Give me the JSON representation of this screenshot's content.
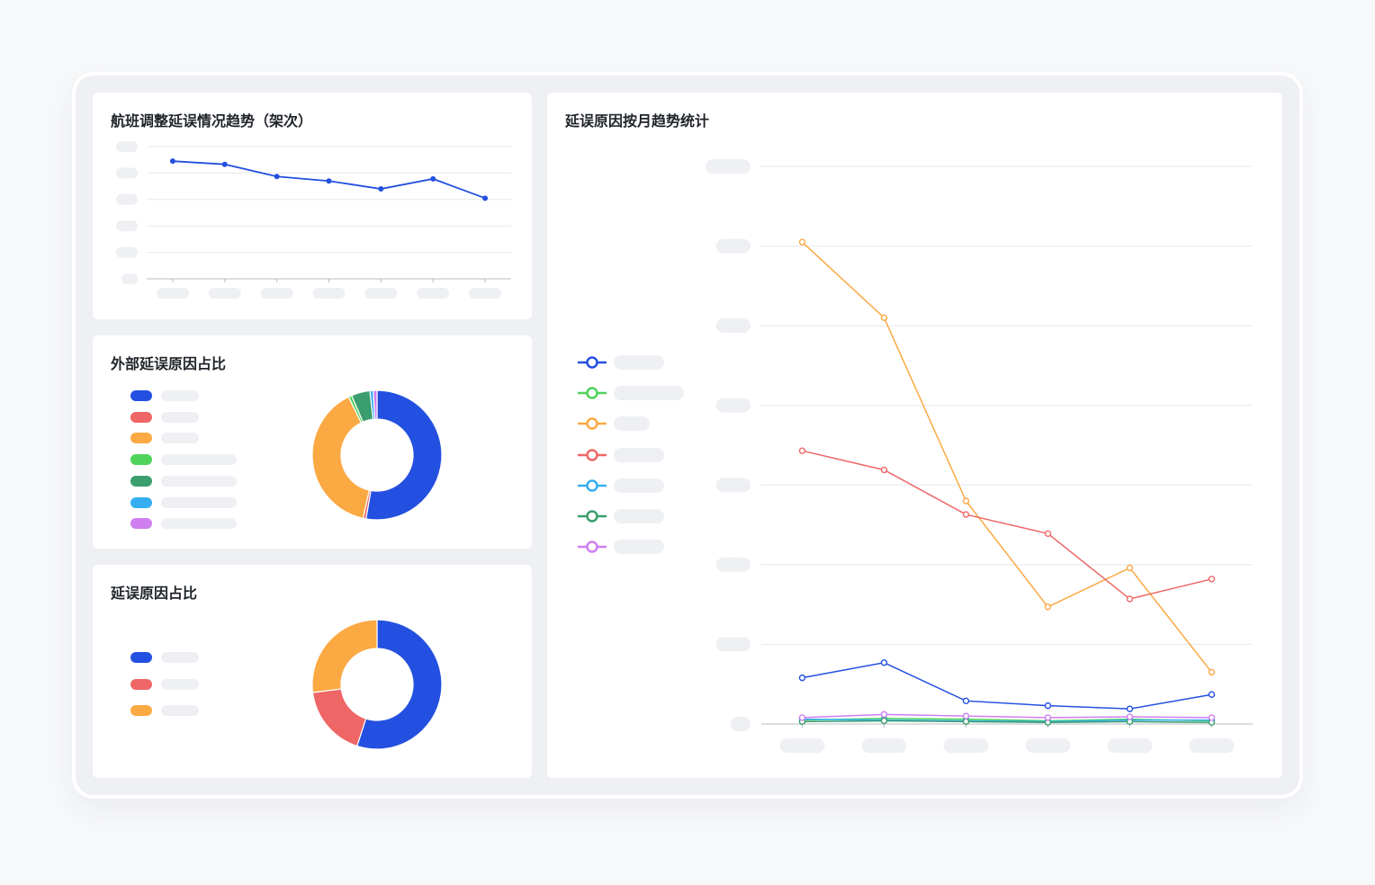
{
  "panels": {
    "trend_title": "航班调整延误情况趋势（架次）",
    "external_title": "外部延误原因占比",
    "reason_title": "延误原因占比",
    "monthly_title": "延误原因按月趋势统计"
  },
  "colors": {
    "blue": "#2350e0",
    "red": "#ee6666",
    "orange": "#fba943",
    "green": "#4fd35a",
    "teal": "#3a9e6e",
    "sky": "#37aef0",
    "violet": "#cf7ff0"
  },
  "chart_data": [
    {
      "type": "line",
      "title": "航班调整延误情况趋势（架次）",
      "x": [
        "",
        "",
        "",
        "",
        "",
        "",
        ""
      ],
      "grid": true,
      "ylim": [
        0,
        5
      ],
      "series": [
        {
          "values": [
            4.45,
            4.33,
            3.87,
            3.7,
            3.4,
            3.78,
            3.05
          ]
        }
      ]
    },
    {
      "type": "pie",
      "title": "外部延误原因占比",
      "legend": "left",
      "series": [
        {
          "values": [
            51,
            0.7,
            38,
            0.8,
            4.5,
            0.8,
            0.9
          ]
        }
      ]
    },
    {
      "type": "pie",
      "title": "延误原因占比",
      "legend": "left",
      "series": [
        {
          "values": [
            55,
            18,
            27
          ]
        }
      ]
    },
    {
      "type": "line",
      "title": "延误原因按月趋势统计",
      "x": [
        "",
        "",
        "",
        "",
        "",
        ""
      ],
      "grid": true,
      "ylim": [
        0,
        70
      ],
      "legend": "left",
      "series": [
        {
          "values": [
            5.8,
            7.7,
            2.9,
            2.3,
            1.9,
            3.7
          ]
        },
        {
          "values": [
            0.5,
            0.7,
            0.6,
            0.4,
            0.6,
            0.4
          ]
        },
        {
          "values": [
            60.5,
            51,
            28,
            14.7,
            19.6,
            6.5
          ]
        },
        {
          "values": [
            34.3,
            31.9,
            26.3,
            23.9,
            15.7,
            18.2
          ]
        },
        {
          "values": [
            0.6,
            0.5,
            0.4,
            0.3,
            0.5,
            0.5
          ]
        },
        {
          "values": [
            0.3,
            0.4,
            0.3,
            0.2,
            0.3,
            0.2
          ]
        },
        {
          "values": [
            0.8,
            1.2,
            1.0,
            0.8,
            0.9,
            0.8
          ]
        }
      ]
    }
  ]
}
